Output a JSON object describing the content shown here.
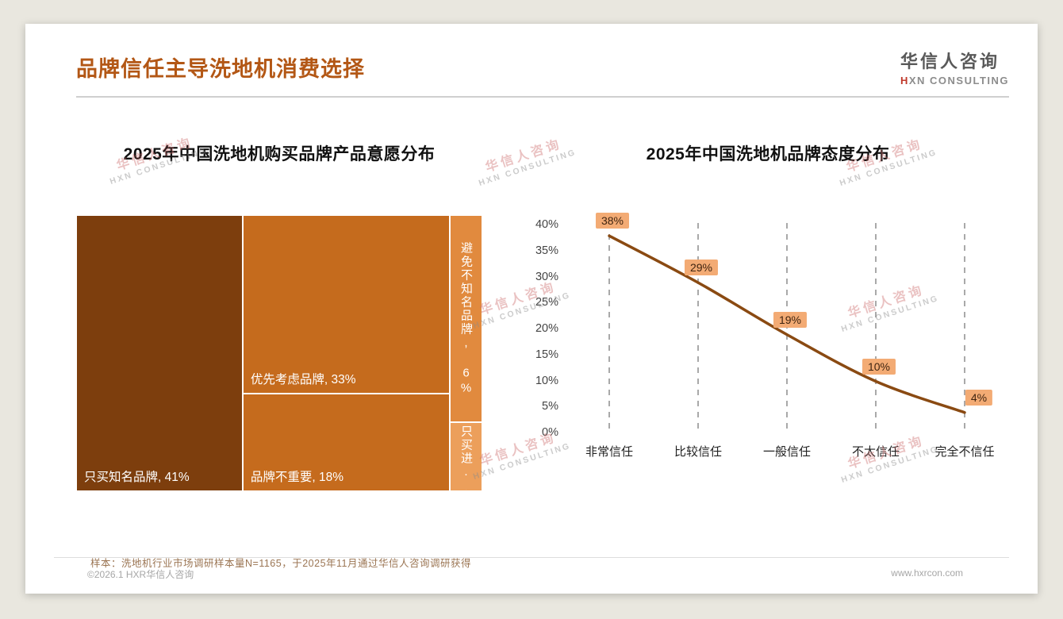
{
  "page": {
    "title": "品牌信任主导洗地机消费选择",
    "logo": {
      "cn": "华信人咨询",
      "en_prefix": "H",
      "en_rest": "XN CONSULTING"
    },
    "watermark": {
      "line1": "华信人咨询",
      "line2": "HXN CONSULTING"
    },
    "note": "样本：洗地机行业市场调研样本量N=1165，于2025年11月通过华信人咨询调研获得",
    "copyright": "©2026.1 HXR华信人咨询",
    "website": "www.hxrcon.com"
  },
  "chart_data": [
    {
      "type": "treemap",
      "title": "2025年中国洗地机购买品牌产品意愿分布",
      "segments": [
        {
          "label": "只买知名品牌",
          "value": 41,
          "display": "只买知名品牌, 41%",
          "color": "#7d3e0d",
          "orientation": "h"
        },
        {
          "label": "优先考虑品牌",
          "value": 33,
          "display": "优先考虑品牌, 33%",
          "color": "#c56b1d",
          "orientation": "h"
        },
        {
          "label": "品牌不重要",
          "value": 18,
          "display": "品牌不重要, 18%",
          "color": "#c56b1d",
          "orientation": "h"
        },
        {
          "label": "避免不知名品牌",
          "value": 6,
          "display": "避免不知名品牌, 6%",
          "color": "#e18a3e",
          "orientation": "v"
        },
        {
          "label": "只买进...",
          "value": 2,
          "display": "只买进...",
          "color": "#ec9f5b",
          "orientation": "v"
        }
      ]
    },
    {
      "type": "line",
      "title": "2025年中国洗地机品牌态度分布",
      "categories": [
        "非常信任",
        "比较信任",
        "一般信任",
        "不太信任",
        "完全不信任"
      ],
      "values": [
        38,
        29,
        19,
        10,
        4
      ],
      "labels": [
        "38%",
        "29%",
        "19%",
        "10%",
        "4%"
      ],
      "yticks": [
        "0%",
        "5%",
        "10%",
        "15%",
        "20%",
        "25%",
        "30%",
        "35%",
        "40%"
      ],
      "ylim": [
        0,
        42
      ],
      "grid": "vertical-dashed",
      "legend": "none",
      "line_color": "#8a4a12",
      "label_bg": "#f3ab74"
    }
  ]
}
